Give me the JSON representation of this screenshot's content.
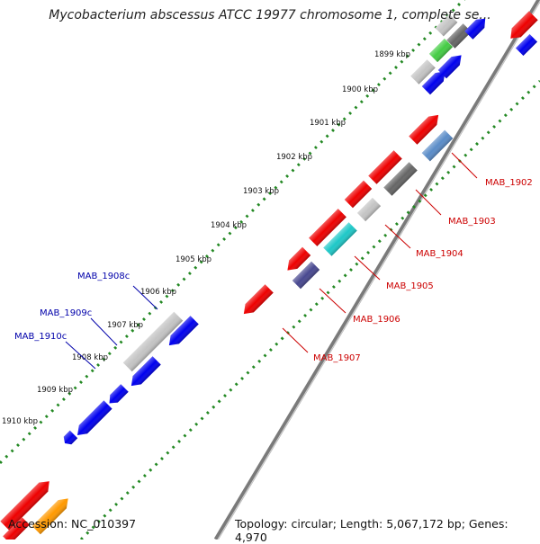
{
  "title": "Mycobacterium abscessus ATCC 19977 chromosome 1, complete se...",
  "footer": {
    "accession": "Accession: NC_010397",
    "summary": "Topology: circular; Length: 5,067,172 bp; Genes: 4,970"
  },
  "ticks": [
    "1899 kbp",
    "1900 kbp",
    "1901 kbp",
    "1902 kbp",
    "1903 kbp",
    "1904 kbp",
    "1905 kbp",
    "1906 kbp",
    "1907 kbp",
    "1908 kbp",
    "1909 kbp",
    "1910 kbp"
  ],
  "gene_labels": {
    "forward": [
      "MAB_1908c",
      "MAB_1909c",
      "MAB_1910c"
    ],
    "reverse": [
      "MAB_1902",
      "MAB_1903",
      "MAB_1904",
      "MAB_1905",
      "MAB_1906",
      "MAB_1907"
    ]
  },
  "colors": {
    "red": "#ee0000",
    "blue": "#0000ee",
    "gray_dark": "#666666",
    "gray_light": "#c4c4c4",
    "cyan": "#1ec8c8",
    "steel_blue": "#5a8cc8",
    "slate": "#484890",
    "green": "#44cc44",
    "orange": "#ff9900",
    "tick_green": "#228822",
    "forward_label": "#0000aa",
    "reverse_label": "#cc0000"
  }
}
